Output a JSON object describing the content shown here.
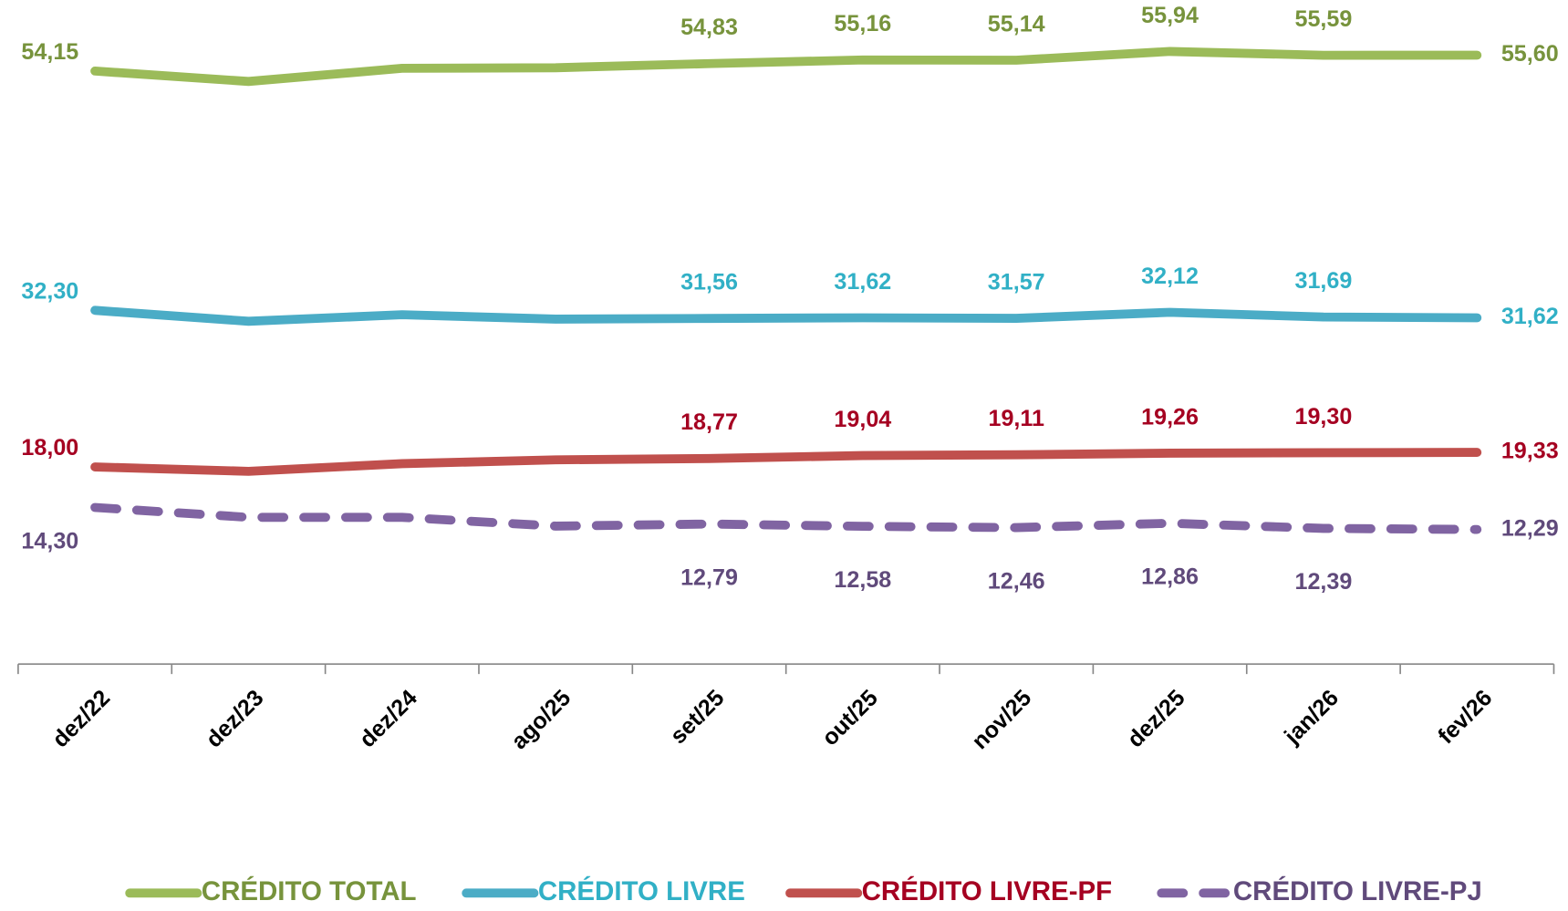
{
  "chart_data": {
    "type": "line",
    "categories": [
      "dez/22",
      "dez/23",
      "dez/24",
      "ago/25",
      "set/25",
      "out/25",
      "nov/25",
      "dez/25",
      "jan/26",
      "fev/26"
    ],
    "ylim": [
      0,
      60
    ],
    "series": [
      {
        "name": "CRÉDITO TOTAL",
        "color": "#9bbb59",
        "label_color": "#77933c",
        "dashed": false,
        "label_position": "above",
        "values": [
          54.15,
          53.2,
          54.4,
          54.45,
          54.83,
          55.16,
          55.14,
          55.94,
          55.59,
          55.6
        ],
        "value_labels": [
          "54,15",
          null,
          null,
          null,
          "54,83",
          "55,16",
          "55,14",
          "55,94",
          "55,59",
          "55,60"
        ]
      },
      {
        "name": "CRÉDITO LIVRE",
        "color": "#4bacc6",
        "label_color": "#31b0c6",
        "dashed": false,
        "label_position": "above",
        "values": [
          32.3,
          31.3,
          31.9,
          31.5,
          31.56,
          31.62,
          31.57,
          32.12,
          31.69,
          31.62
        ],
        "value_labels": [
          "32,30",
          null,
          null,
          null,
          "31,56",
          "31,62",
          "31,57",
          "32,12",
          "31,69",
          "31,62"
        ]
      },
      {
        "name": "CRÉDITO LIVRE-PF",
        "color": "#c0504d",
        "label_color": "#a50021",
        "dashed": false,
        "label_position": "above",
        "values": [
          18.0,
          17.6,
          18.3,
          18.65,
          18.77,
          19.04,
          19.11,
          19.26,
          19.3,
          19.33
        ],
        "value_labels": [
          "18,00",
          null,
          null,
          null,
          "18,77",
          "19,04",
          "19,11",
          "19,26",
          "19,30",
          "19,33"
        ]
      },
      {
        "name": "CRÉDITO LIVRE-PJ",
        "color": "#8064a2",
        "label_color": "#604a7b",
        "dashed": true,
        "label_position": "below",
        "values": [
          14.3,
          13.4,
          13.4,
          12.6,
          12.79,
          12.58,
          12.46,
          12.86,
          12.39,
          12.29
        ],
        "value_labels": [
          "14,30",
          null,
          null,
          null,
          "12,79",
          "12,58",
          "12,46",
          "12,86",
          "12,39",
          "12,29"
        ]
      }
    ]
  }
}
